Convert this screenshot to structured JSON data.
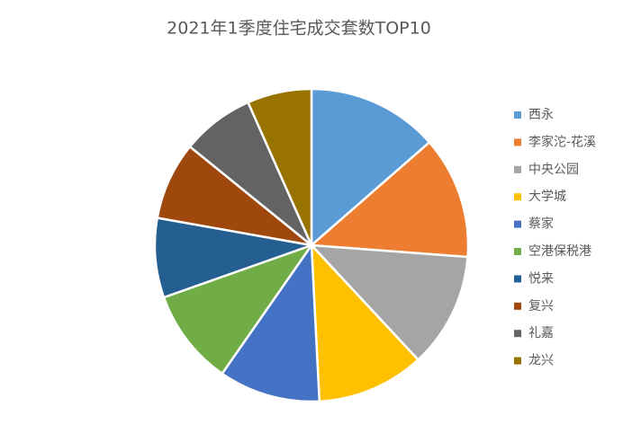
{
  "chart_data": {
    "type": "pie",
    "title": "2021年1季度住宅成交套数TOP10",
    "categories": [
      "西永",
      "李家沱-花溪",
      "中央公园",
      "大学城",
      "蔡家",
      "空港保税港",
      "悦来",
      "复兴",
      "礼嘉",
      "龙兴"
    ],
    "values": [
      488,
      455,
      428,
      400,
      377,
      357,
      296,
      290,
      270,
      239
    ],
    "colors": [
      "#5b9bd5",
      "#ed7d31",
      "#a5a5a5",
      "#ffc000",
      "#4472c4",
      "#70ad47",
      "#255e91",
      "#9e480e",
      "#636363",
      "#997300"
    ],
    "legend": "right"
  }
}
